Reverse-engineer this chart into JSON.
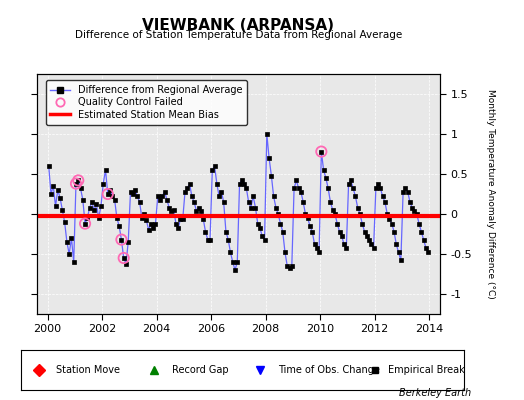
{
  "title": "VIEWBANK (ARPANSA)",
  "subtitle": "Difference of Station Temperature Data from Regional Average",
  "ylabel_right": "Monthly Temperature Anomaly Difference (°C)",
  "bias": -0.02,
  "ylim": [
    -1.25,
    1.75
  ],
  "xlim": [
    1999.6,
    2014.4
  ],
  "yticks": [
    -1,
    -0.5,
    0,
    0.5,
    1,
    1.5
  ],
  "xticks": [
    2000,
    2002,
    2004,
    2006,
    2008,
    2010,
    2012,
    2014
  ],
  "background_color": "#e8e8e8",
  "line_color": "#6666ff",
  "bias_color": "#ff0000",
  "marker_color": "#000000",
  "qc_color": "#ff69b4",
  "berkeley_earth_text": "Berkeley Earth",
  "seed": 42,
  "values": [
    0.6,
    0.25,
    0.35,
    0.1,
    0.3,
    0.2,
    0.05,
    -0.1,
    -0.35,
    -0.5,
    -0.3,
    -0.6,
    0.38,
    0.42,
    0.32,
    0.18,
    -0.12,
    -0.05,
    0.08,
    0.15,
    0.05,
    0.12,
    -0.05,
    0.1,
    0.38,
    0.55,
    0.25,
    0.3,
    0.22,
    0.18,
    -0.05,
    -0.15,
    -0.32,
    -0.55,
    -0.62,
    -0.35,
    0.28,
    0.25,
    0.3,
    0.22,
    0.15,
    -0.05,
    0.0,
    -0.08,
    -0.2,
    -0.12,
    -0.18,
    -0.12,
    0.22,
    0.18,
    0.22,
    0.28,
    0.18,
    0.08,
    0.04,
    0.05,
    -0.12,
    -0.18,
    -0.06,
    -0.06,
    0.28,
    0.32,
    0.38,
    0.22,
    0.15,
    0.04,
    0.08,
    0.04,
    -0.06,
    -0.22,
    -0.32,
    -0.32,
    0.55,
    0.6,
    0.38,
    0.22,
    0.28,
    0.15,
    -0.22,
    -0.32,
    -0.48,
    -0.6,
    -0.7,
    -0.6,
    0.38,
    0.42,
    0.38,
    0.32,
    0.15,
    0.08,
    0.22,
    0.08,
    -0.12,
    -0.18,
    -0.28,
    -0.32,
    1.0,
    0.7,
    0.48,
    0.22,
    0.08,
    0.0,
    -0.12,
    -0.22,
    -0.48,
    -0.65,
    -0.68,
    -0.65,
    0.32,
    0.42,
    0.32,
    0.28,
    0.15,
    0.0,
    -0.05,
    -0.15,
    -0.22,
    -0.38,
    -0.42,
    -0.48,
    0.78,
    0.55,
    0.45,
    0.32,
    0.15,
    0.05,
    0.0,
    -0.12,
    -0.22,
    -0.28,
    -0.38,
    -0.42,
    0.38,
    0.42,
    0.32,
    0.22,
    0.08,
    0.0,
    -0.12,
    -0.22,
    -0.28,
    -0.32,
    -0.38,
    -0.42,
    0.32,
    0.38,
    0.32,
    0.22,
    0.15,
    0.0,
    -0.06,
    -0.12,
    -0.22,
    -0.38,
    -0.48,
    -0.58,
    0.28,
    0.32,
    0.28,
    0.15,
    0.08,
    0.04,
    0.0,
    -0.12,
    -0.22,
    -0.32,
    -0.42,
    -0.48
  ],
  "qc_indices": [
    12,
    13,
    16,
    26,
    32,
    33,
    120
  ]
}
